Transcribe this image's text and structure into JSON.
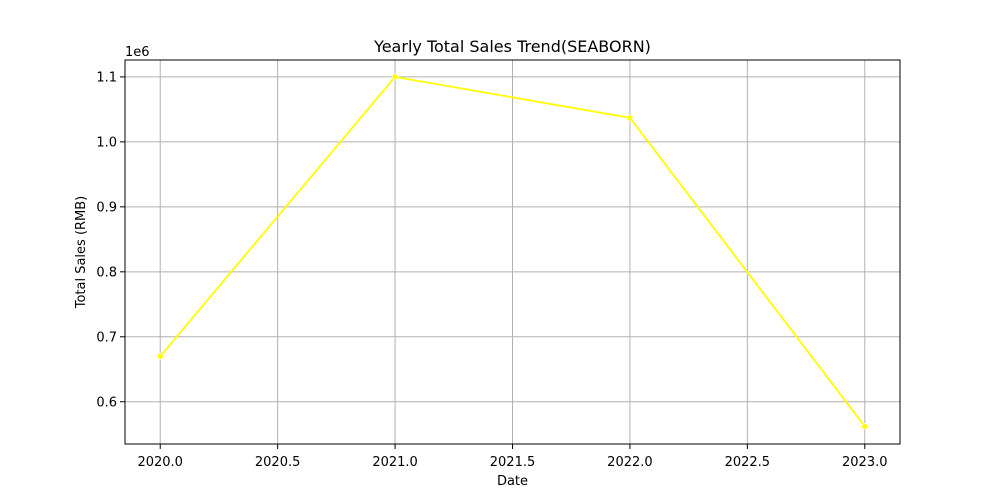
{
  "chart_data": {
    "type": "line",
    "title": "Yearly Total Sales Trend(SEABORN)",
    "xlabel": "Date",
    "ylabel": "Total Sales (RMB)",
    "y_offset_label": "1e6",
    "x": [
      2020,
      2021,
      2022,
      2023
    ],
    "series": [
      {
        "values": [
          670000,
          1100000,
          1037000,
          562000
        ],
        "color": "#ffff00"
      }
    ],
    "xlim": [
      2019.85,
      2023.15
    ],
    "ylim": [
      535000,
      1126000
    ],
    "x_ticks": [
      2020.0,
      2020.5,
      2021.0,
      2021.5,
      2022.0,
      2022.5,
      2023.0
    ],
    "x_tick_labels": [
      "2020.0",
      "2020.5",
      "2021.0",
      "2021.5",
      "2022.0",
      "2022.5",
      "2023.0"
    ],
    "y_ticks": [
      600000,
      700000,
      800000,
      900000,
      1000000,
      1100000
    ],
    "y_tick_labels": [
      "0.6",
      "0.7",
      "0.8",
      "0.9",
      "1.0",
      "1.1"
    ],
    "grid": true,
    "legend": "none"
  }
}
